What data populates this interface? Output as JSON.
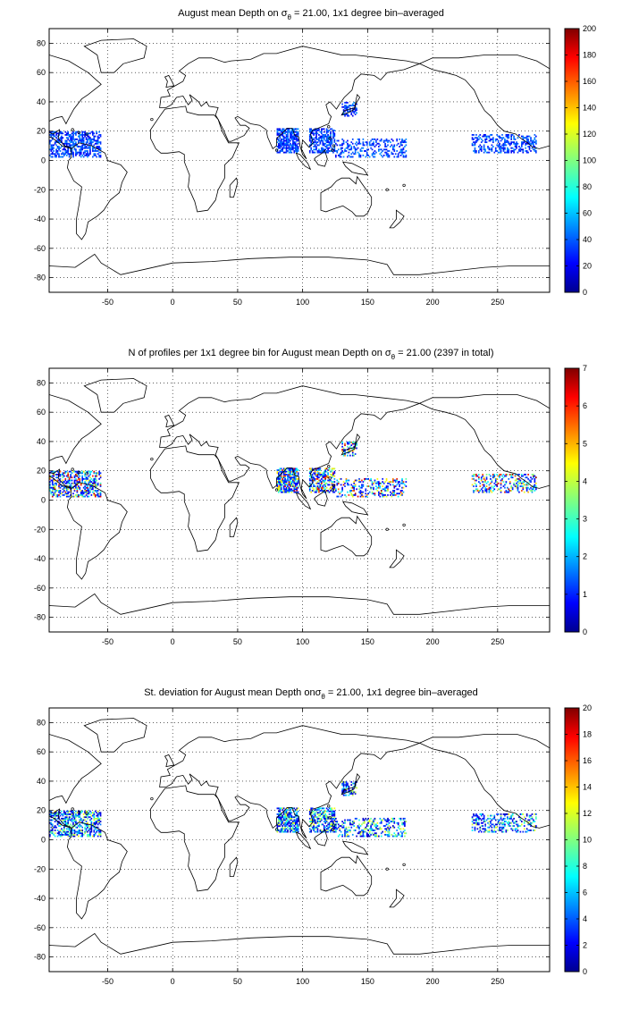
{
  "colors": {
    "land_outline": "#000000",
    "grid": "#000000",
    "background": "#ffffff",
    "colormap": "jet"
  },
  "axes": {
    "xticks": [
      "-50",
      "0",
      "50",
      "100",
      "150",
      "200",
      "250"
    ],
    "yticks": [
      "80",
      "60",
      "40",
      "20",
      "0",
      "-20",
      "-40",
      "-60",
      "-80"
    ],
    "xlim": [
      -95,
      290
    ],
    "ylim": [
      -90,
      90
    ],
    "grid": "dotted"
  },
  "panels": [
    {
      "title_pre": "August mean Depth on ",
      "title_sigma": "σ",
      "title_sub": "θ",
      "title_post": " = 21.00, 1x1 degree bin–averaged",
      "colorbar_ticks": [
        "200",
        "180",
        "160",
        "140",
        "120",
        "100",
        "80",
        "60",
        "40",
        "20",
        "0"
      ],
      "colorbar_range": [
        0,
        200
      ]
    },
    {
      "title_pre": "N of profiles per 1x1 degree bin for August mean Depth on ",
      "title_sigma": "σ",
      "title_sub": "θ",
      "title_post": " = 21.00 (2397 in total)",
      "colorbar_ticks": [
        "7",
        "6",
        "5",
        "4",
        "3",
        "2",
        "1",
        "0"
      ],
      "colorbar_range": [
        0,
        7
      ]
    },
    {
      "title_pre": "St. deviation for August mean Depth on",
      "title_sigma": "σ",
      "title_sub": "θ",
      "title_post": " = 21.00, 1x1 degree bin–averaged",
      "colorbar_ticks": [
        "20",
        "18",
        "16",
        "14",
        "12",
        "10",
        "8",
        "6",
        "4",
        "2",
        "0"
      ],
      "colorbar_range": [
        0,
        20
      ]
    }
  ],
  "data_regions": [
    {
      "name": "caribbean",
      "lon": [
        -95,
        -55
      ],
      "lat": [
        2,
        20
      ],
      "density": 0.55
    },
    {
      "name": "bay-of-bengal",
      "lon": [
        80,
        97
      ],
      "lat": [
        5,
        22
      ],
      "density": 0.75
    },
    {
      "name": "south-china-sea",
      "lon": [
        105,
        125
      ],
      "lat": [
        5,
        22
      ],
      "density": 0.6
    },
    {
      "name": "west-pacific",
      "lon": [
        125,
        180
      ],
      "lat": [
        2,
        15
      ],
      "density": 0.35
    },
    {
      "name": "japan",
      "lon": [
        130,
        142
      ],
      "lat": [
        30,
        40
      ],
      "density": 0.5
    },
    {
      "name": "east-pacific",
      "lon": [
        230,
        280
      ],
      "lat": [
        5,
        18
      ],
      "density": 0.4
    }
  ]
}
